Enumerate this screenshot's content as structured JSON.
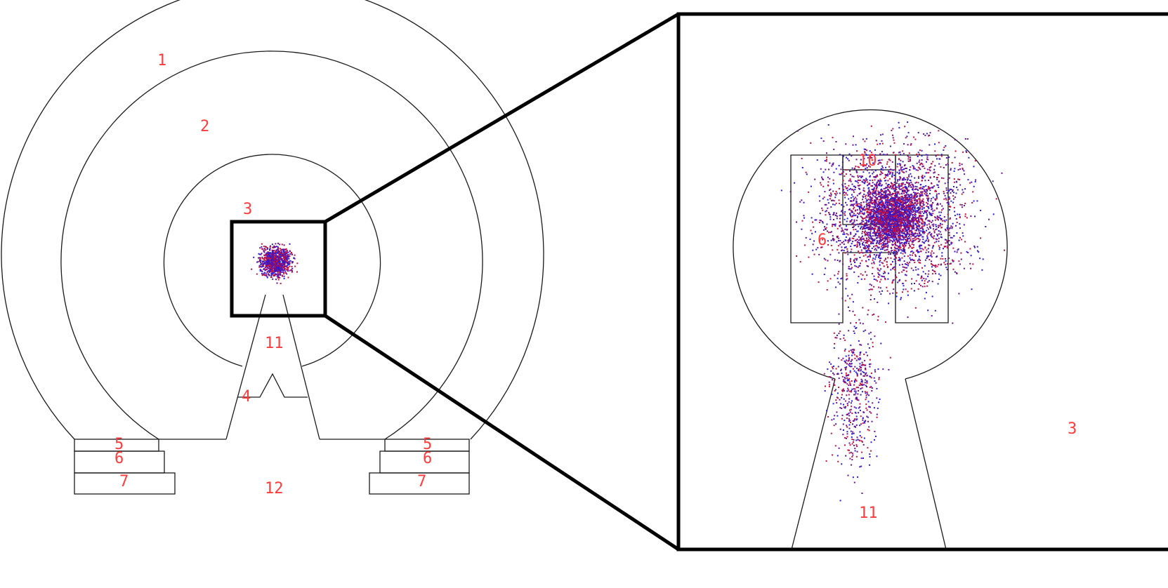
{
  "colors": {
    "label": "#ff3b3b",
    "outline": "#1a1a1a",
    "particle_blue": "#2a1ad8",
    "particle_red": "#c8103c",
    "particle_purple": "#6a1090"
  },
  "overview": {
    "labels": {
      "region_1": "1",
      "region_2": "2",
      "region_3": "3",
      "region_4": "4",
      "region_5_left": "5",
      "region_6_left": "6",
      "region_7_left": "7",
      "region_5_right": "5",
      "region_6_right": "6",
      "region_7_right": "7",
      "region_11": "11",
      "region_12": "12"
    }
  },
  "zoom": {
    "labels": {
      "region_10": "10",
      "region_6": "6",
      "region_3": "3",
      "region_11": "11"
    }
  }
}
